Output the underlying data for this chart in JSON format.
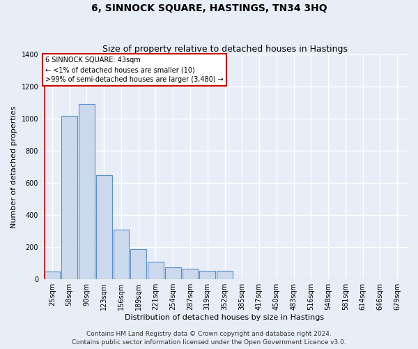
{
  "title": "6, SINNOCK SQUARE, HASTINGS, TN34 3HQ",
  "subtitle": "Size of property relative to detached houses in Hastings",
  "xlabel": "Distribution of detached houses by size in Hastings",
  "ylabel": "Number of detached properties",
  "categories": [
    "25sqm",
    "58sqm",
    "90sqm",
    "123sqm",
    "156sqm",
    "189sqm",
    "221sqm",
    "254sqm",
    "287sqm",
    "319sqm",
    "352sqm",
    "385sqm",
    "417sqm",
    "450sqm",
    "483sqm",
    "516sqm",
    "548sqm",
    "581sqm",
    "614sqm",
    "646sqm",
    "679sqm"
  ],
  "values": [
    50,
    1020,
    1090,
    650,
    310,
    190,
    110,
    75,
    65,
    55,
    55,
    0,
    0,
    0,
    0,
    0,
    0,
    0,
    0,
    0,
    0
  ],
  "bar_color": "#ccd9ec",
  "bar_edge_color": "#5b8fc9",
  "highlight_index": 0,
  "highlight_edge_color": "#cc0000",
  "ylim": [
    0,
    1400
  ],
  "yticks": [
    0,
    200,
    400,
    600,
    800,
    1000,
    1200,
    1400
  ],
  "annotation_box_text": "6 SINNOCK SQUARE: 43sqm\n← <1% of detached houses are smaller (10)\n>99% of semi-detached houses are larger (3,480) →",
  "footer_line1": "Contains HM Land Registry data © Crown copyright and database right 2024.",
  "footer_line2": "Contains public sector information licensed under the Open Government Licence v3.0.",
  "background_color": "#e8eef8",
  "plot_background_color": "#e8eef8",
  "grid_color": "#ffffff",
  "title_fontsize": 10,
  "subtitle_fontsize": 9,
  "axis_label_fontsize": 8,
  "tick_fontsize": 7,
  "footer_fontsize": 6.5
}
